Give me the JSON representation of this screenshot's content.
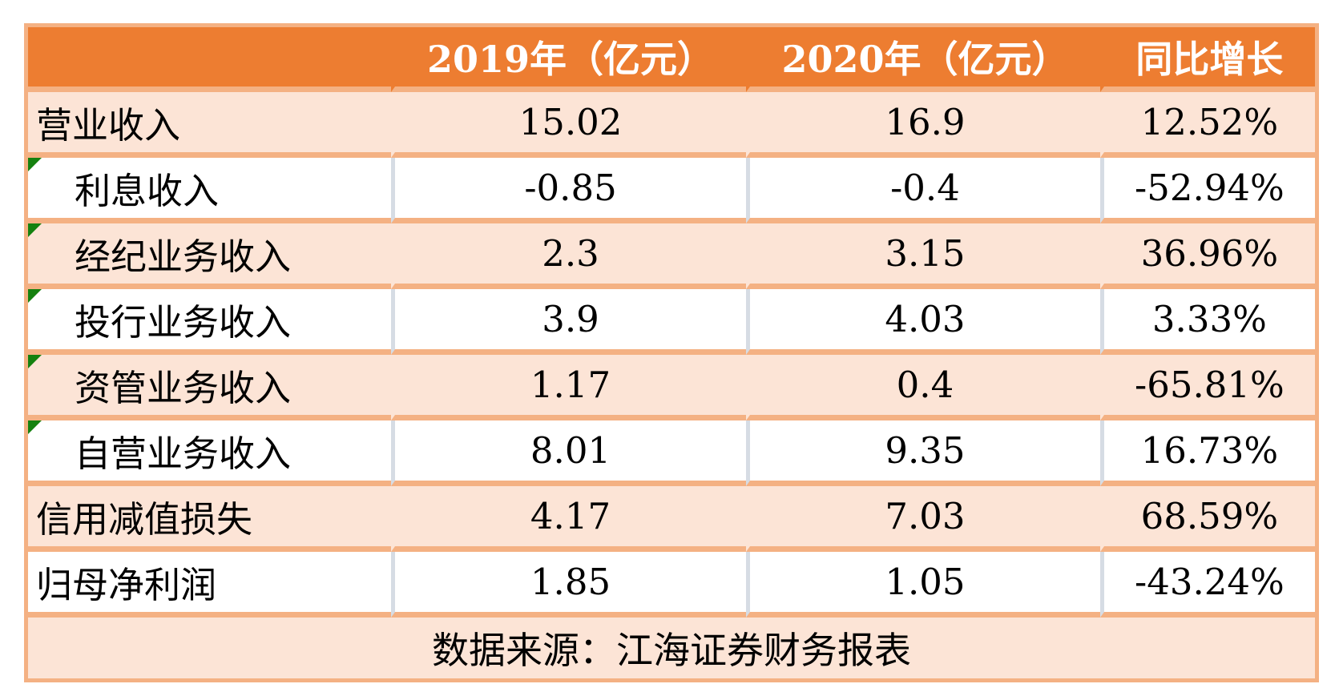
{
  "chart_data": {
    "type": "table",
    "columns": [
      "",
      "2019年（亿元）",
      "2020年（亿元）",
      "同比增长"
    ],
    "rows": [
      {
        "label": "营业收入",
        "y2019": "15.02",
        "y2020": "16.9",
        "yoy": "12.52%",
        "indent": false,
        "flag": false
      },
      {
        "label": "利息收入",
        "y2019": "-0.85",
        "y2020": "-0.4",
        "yoy": "-52.94%",
        "indent": true,
        "flag": true
      },
      {
        "label": "经纪业务收入",
        "y2019": "2.3",
        "y2020": "3.15",
        "yoy": "36.96%",
        "indent": true,
        "flag": true
      },
      {
        "label": "投行业务收入",
        "y2019": "3.9",
        "y2020": "4.03",
        "yoy": "3.33%",
        "indent": true,
        "flag": true
      },
      {
        "label": "资管业务收入",
        "y2019": "1.17",
        "y2020": "0.4",
        "yoy": "-65.81%",
        "indent": true,
        "flag": true
      },
      {
        "label": "自营业务收入",
        "y2019": "8.01",
        "y2020": "9.35",
        "yoy": "16.73%",
        "indent": true,
        "flag": true
      },
      {
        "label": "信用减值损失",
        "y2019": "4.17",
        "y2020": "7.03",
        "yoy": "68.59%",
        "indent": false,
        "flag": false
      },
      {
        "label": "归母净利润",
        "y2019": "1.85",
        "y2020": "1.05",
        "yoy": "-43.24%",
        "indent": false,
        "flag": false
      }
    ],
    "footer": "数据来源：江海证券财务报表"
  },
  "colors": {
    "header_bg": "#ED7D31",
    "header_text": "#FFFFFF",
    "row_alt_bg": "#FCE4D6",
    "border_orange": "#F4B183",
    "divider_blue": "#D6DCE4",
    "flag_green": "#15810F",
    "body_text": "#000000"
  }
}
